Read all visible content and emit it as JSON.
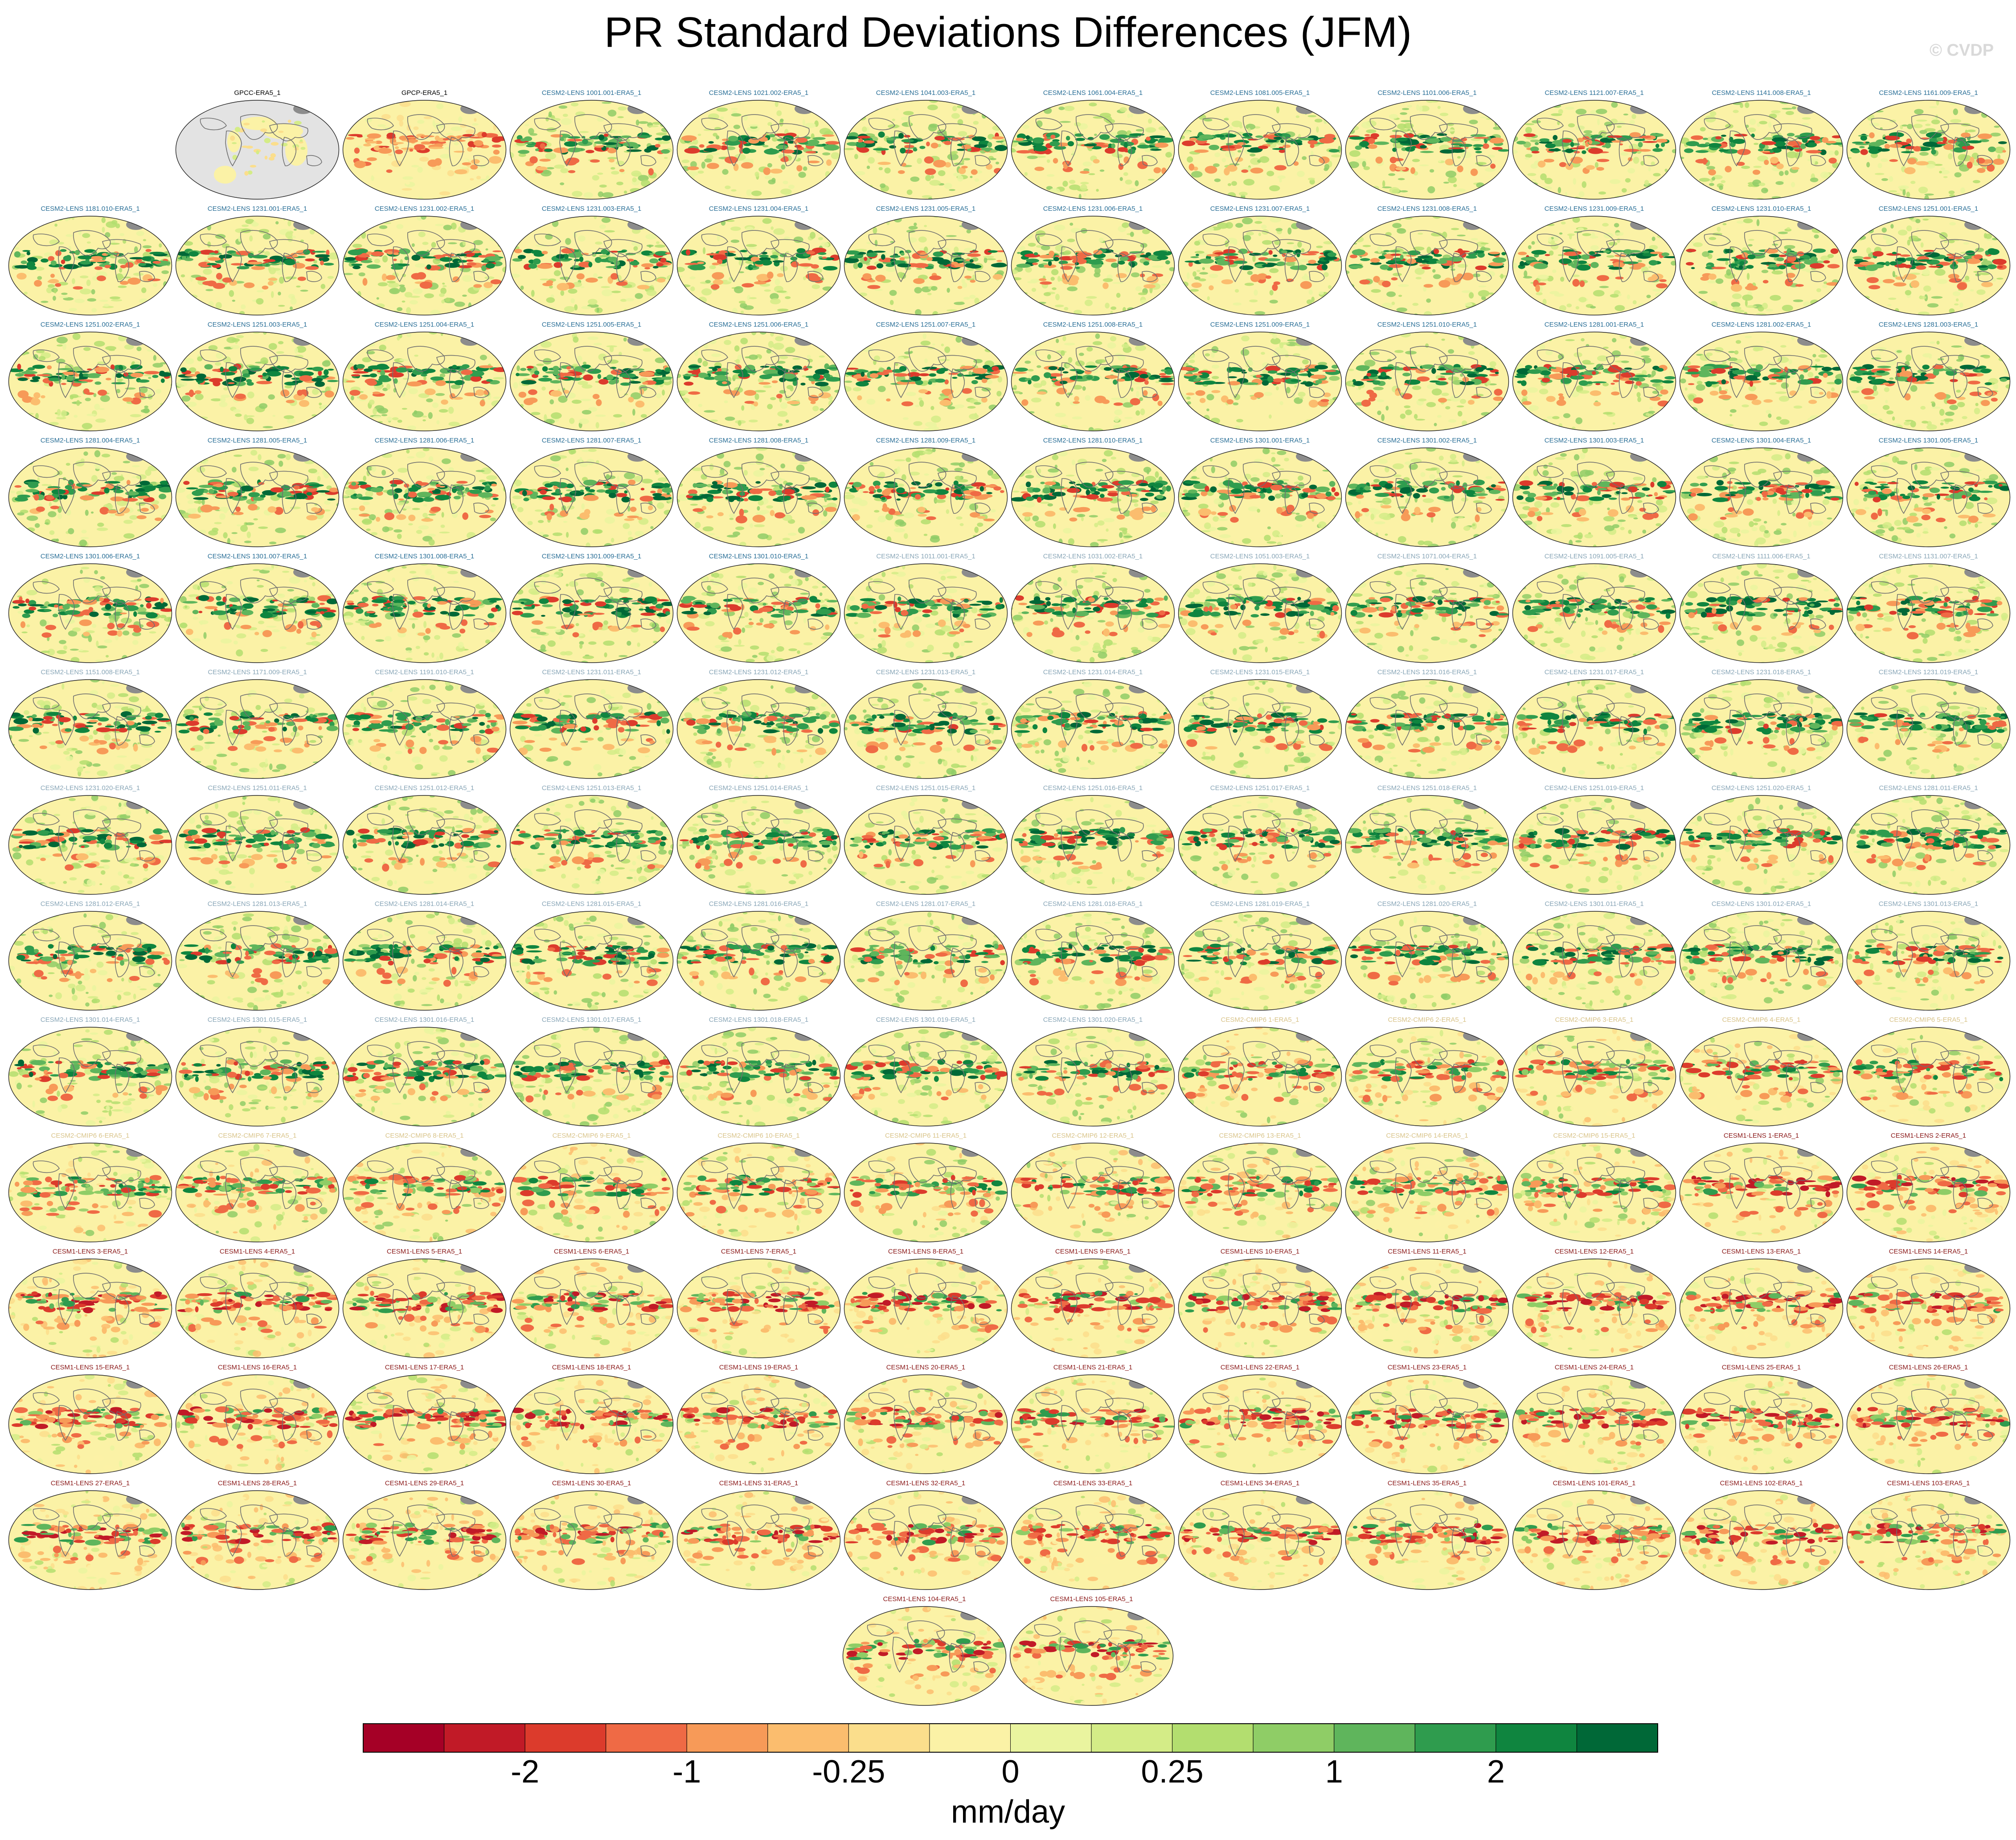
{
  "title": "PR Standard Deviations Differences (JFM)",
  "watermark": "© CVDP",
  "colorbar": {
    "units": "mm/day",
    "colors": [
      "#a50026",
      "#c11a27",
      "#dc3b2c",
      "#ef6a45",
      "#f79a58",
      "#fbbd6e",
      "#fbde8c",
      "#fbf2a6",
      "#eaf49f",
      "#d4ec87",
      "#b3de6f",
      "#8fcd66",
      "#5fb55c",
      "#2f9c4e",
      "#0f853f",
      "#006837"
    ],
    "tick_labels": [
      "-2",
      "-1",
      "-0.25",
      "0",
      "0.25",
      "1",
      "2"
    ]
  },
  "group_colors": {
    "obs": "#000000",
    "cesm2_lens": "#2a6f97",
    "cesm2_lens_light": "#8aa7b8",
    "cesm2_cmip6": "#d9c48a",
    "cesm1_lens": "#8b1a1a"
  },
  "chart_data": {
    "type": "map-panels",
    "title": "PR Standard Deviations Differences (JFM)",
    "colorbar_label": "mm/day",
    "colorbar_levels": [
      "-2",
      "-1",
      "-0.25",
      "0",
      "0.25",
      "1",
      "2"
    ],
    "panels": [
      {
        "name": "GPCC-ERA5_1",
        "group": "obs",
        "pattern": "gpcc"
      },
      {
        "name": "GPCP-ERA5_1",
        "group": "obs",
        "pattern": "gpcp"
      },
      {
        "name": "CESM2-LENS 1001.001-ERA5_1",
        "group": "cesm2_lens",
        "pattern": "wet"
      },
      {
        "name": "CESM2-LENS 1021.002-ERA5_1",
        "group": "cesm2_lens",
        "pattern": "wet"
      },
      {
        "name": "CESM2-LENS 1041.003-ERA5_1",
        "group": "cesm2_lens",
        "pattern": "wet"
      },
      {
        "name": "CESM2-LENS 1061.004-ERA5_1",
        "group": "cesm2_lens",
        "pattern": "wet"
      },
      {
        "name": "CESM2-LENS 1081.005-ERA5_1",
        "group": "cesm2_lens",
        "pattern": "wet"
      },
      {
        "name": "CESM2-LENS 1101.006-ERA5_1",
        "group": "cesm2_lens",
        "pattern": "wet"
      },
      {
        "name": "CESM2-LENS 1121.007-ERA5_1",
        "group": "cesm2_lens",
        "pattern": "wet"
      },
      {
        "name": "CESM2-LENS 1141.008-ERA5_1",
        "group": "cesm2_lens",
        "pattern": "wet"
      },
      {
        "name": "CESM2-LENS 1161.009-ERA5_1",
        "group": "cesm2_lens",
        "pattern": "wet"
      },
      {
        "name": "CESM2-LENS 1181.010-ERA5_1",
        "group": "cesm2_lens",
        "pattern": "wet"
      },
      {
        "name": "CESM2-LENS 1231.001-ERA5_1",
        "group": "cesm2_lens",
        "pattern": "wet"
      },
      {
        "name": "CESM2-LENS 1231.002-ERA5_1",
        "group": "cesm2_lens",
        "pattern": "wet"
      },
      {
        "name": "CESM2-LENS 1231.003-ERA5_1",
        "group": "cesm2_lens",
        "pattern": "wet"
      },
      {
        "name": "CESM2-LENS 1231.004-ERA5_1",
        "group": "cesm2_lens",
        "pattern": "wet"
      },
      {
        "name": "CESM2-LENS 1231.005-ERA5_1",
        "group": "cesm2_lens",
        "pattern": "wet"
      },
      {
        "name": "CESM2-LENS 1231.006-ERA5_1",
        "group": "cesm2_lens",
        "pattern": "wet"
      },
      {
        "name": "CESM2-LENS 1231.007-ERA5_1",
        "group": "cesm2_lens",
        "pattern": "wet"
      },
      {
        "name": "CESM2-LENS 1231.008-ERA5_1",
        "group": "cesm2_lens",
        "pattern": "wet"
      },
      {
        "name": "CESM2-LENS 1231.009-ERA5_1",
        "group": "cesm2_lens",
        "pattern": "wet"
      },
      {
        "name": "CESM2-LENS 1231.010-ERA5_1",
        "group": "cesm2_lens",
        "pattern": "wet"
      },
      {
        "name": "CESM2-LENS 1251.001-ERA5_1",
        "group": "cesm2_lens",
        "pattern": "wet"
      },
      {
        "name": "CESM2-LENS 1251.002-ERA5_1",
        "group": "cesm2_lens",
        "pattern": "wet"
      },
      {
        "name": "CESM2-LENS 1251.003-ERA5_1",
        "group": "cesm2_lens",
        "pattern": "wet"
      },
      {
        "name": "CESM2-LENS 1251.004-ERA5_1",
        "group": "cesm2_lens",
        "pattern": "wet"
      },
      {
        "name": "CESM2-LENS 1251.005-ERA5_1",
        "group": "cesm2_lens",
        "pattern": "wet"
      },
      {
        "name": "CESM2-LENS 1251.006-ERA5_1",
        "group": "cesm2_lens",
        "pattern": "wet"
      },
      {
        "name": "CESM2-LENS 1251.007-ERA5_1",
        "group": "cesm2_lens",
        "pattern": "wet"
      },
      {
        "name": "CESM2-LENS 1251.008-ERA5_1",
        "group": "cesm2_lens",
        "pattern": "wet"
      },
      {
        "name": "CESM2-LENS 1251.009-ERA5_1",
        "group": "cesm2_lens",
        "pattern": "wet"
      },
      {
        "name": "CESM2-LENS 1251.010-ERA5_1",
        "group": "cesm2_lens",
        "pattern": "wet"
      },
      {
        "name": "CESM2-LENS 1281.001-ERA5_1",
        "group": "cesm2_lens",
        "pattern": "wet"
      },
      {
        "name": "CESM2-LENS 1281.002-ERA5_1",
        "group": "cesm2_lens",
        "pattern": "wet"
      },
      {
        "name": "CESM2-LENS 1281.003-ERA5_1",
        "group": "cesm2_lens",
        "pattern": "wet"
      },
      {
        "name": "CESM2-LENS 1281.004-ERA5_1",
        "group": "cesm2_lens",
        "pattern": "wet"
      },
      {
        "name": "CESM2-LENS 1281.005-ERA5_1",
        "group": "cesm2_lens",
        "pattern": "wet"
      },
      {
        "name": "CESM2-LENS 1281.006-ERA5_1",
        "group": "cesm2_lens",
        "pattern": "wet"
      },
      {
        "name": "CESM2-LENS 1281.007-ERA5_1",
        "group": "cesm2_lens",
        "pattern": "wet"
      },
      {
        "name": "CESM2-LENS 1281.008-ERA5_1",
        "group": "cesm2_lens",
        "pattern": "wet"
      },
      {
        "name": "CESM2-LENS 1281.009-ERA5_1",
        "group": "cesm2_lens",
        "pattern": "wet"
      },
      {
        "name": "CESM2-LENS 1281.010-ERA5_1",
        "group": "cesm2_lens",
        "pattern": "wet"
      },
      {
        "name": "CESM2-LENS 1301.001-ERA5_1",
        "group": "cesm2_lens",
        "pattern": "wet"
      },
      {
        "name": "CESM2-LENS 1301.002-ERA5_1",
        "group": "cesm2_lens",
        "pattern": "wet"
      },
      {
        "name": "CESM2-LENS 1301.003-ERA5_1",
        "group": "cesm2_lens",
        "pattern": "wet"
      },
      {
        "name": "CESM2-LENS 1301.004-ERA5_1",
        "group": "cesm2_lens",
        "pattern": "wet"
      },
      {
        "name": "CESM2-LENS 1301.005-ERA5_1",
        "group": "cesm2_lens",
        "pattern": "wet"
      },
      {
        "name": "CESM2-LENS 1301.006-ERA5_1",
        "group": "cesm2_lens",
        "pattern": "wet"
      },
      {
        "name": "CESM2-LENS 1301.007-ERA5_1",
        "group": "cesm2_lens",
        "pattern": "wet"
      },
      {
        "name": "CESM2-LENS 1301.008-ERA5_1",
        "group": "cesm2_lens",
        "pattern": "wet"
      },
      {
        "name": "CESM2-LENS 1301.009-ERA5_1",
        "group": "cesm2_lens",
        "pattern": "wet"
      },
      {
        "name": "CESM2-LENS 1301.010-ERA5_1",
        "group": "cesm2_lens",
        "pattern": "wet"
      },
      {
        "name": "CESM2-LENS 1011.001-ERA5_1",
        "group": "cesm2_lens_light",
        "pattern": "wet"
      },
      {
        "name": "CESM2-LENS 1031.002-ERA5_1",
        "group": "cesm2_lens_light",
        "pattern": "wet"
      },
      {
        "name": "CESM2-LENS 1051.003-ERA5_1",
        "group": "cesm2_lens_light",
        "pattern": "wet"
      },
      {
        "name": "CESM2-LENS 1071.004-ERA5_1",
        "group": "cesm2_lens_light",
        "pattern": "wet"
      },
      {
        "name": "CESM2-LENS 1091.005-ERA5_1",
        "group": "cesm2_lens_light",
        "pattern": "wet"
      },
      {
        "name": "CESM2-LENS 1111.006-ERA5_1",
        "group": "cesm2_lens_light",
        "pattern": "wet"
      },
      {
        "name": "CESM2-LENS 1131.007-ERA5_1",
        "group": "cesm2_lens_light",
        "pattern": "wet"
      },
      {
        "name": "CESM2-LENS 1151.008-ERA5_1",
        "group": "cesm2_lens_light",
        "pattern": "wet"
      },
      {
        "name": "CESM2-LENS 1171.009-ERA5_1",
        "group": "cesm2_lens_light",
        "pattern": "wet"
      },
      {
        "name": "CESM2-LENS 1191.010-ERA5_1",
        "group": "cesm2_lens_light",
        "pattern": "wet"
      },
      {
        "name": "CESM2-LENS 1231.011-ERA5_1",
        "group": "cesm2_lens_light",
        "pattern": "wet"
      },
      {
        "name": "CESM2-LENS 1231.012-ERA5_1",
        "group": "cesm2_lens_light",
        "pattern": "wet"
      },
      {
        "name": "CESM2-LENS 1231.013-ERA5_1",
        "group": "cesm2_lens_light",
        "pattern": "wet"
      },
      {
        "name": "CESM2-LENS 1231.014-ERA5_1",
        "group": "cesm2_lens_light",
        "pattern": "wet"
      },
      {
        "name": "CESM2-LENS 1231.015-ERA5_1",
        "group": "cesm2_lens_light",
        "pattern": "wet"
      },
      {
        "name": "CESM2-LENS 1231.016-ERA5_1",
        "group": "cesm2_lens_light",
        "pattern": "wet"
      },
      {
        "name": "CESM2-LENS 1231.017-ERA5_1",
        "group": "cesm2_lens_light",
        "pattern": "wet"
      },
      {
        "name": "CESM2-LENS 1231.018-ERA5_1",
        "group": "cesm2_lens_light",
        "pattern": "wet"
      },
      {
        "name": "CESM2-LENS 1231.019-ERA5_1",
        "group": "cesm2_lens_light",
        "pattern": "wet"
      },
      {
        "name": "CESM2-LENS 1231.020-ERA5_1",
        "group": "cesm2_lens_light",
        "pattern": "wet"
      },
      {
        "name": "CESM2-LENS 1251.011-ERA5_1",
        "group": "cesm2_lens_light",
        "pattern": "wet"
      },
      {
        "name": "CESM2-LENS 1251.012-ERA5_1",
        "group": "cesm2_lens_light",
        "pattern": "wet"
      },
      {
        "name": "CESM2-LENS 1251.013-ERA5_1",
        "group": "cesm2_lens_light",
        "pattern": "wet"
      },
      {
        "name": "CESM2-LENS 1251.014-ERA5_1",
        "group": "cesm2_lens_light",
        "pattern": "wet"
      },
      {
        "name": "CESM2-LENS 1251.015-ERA5_1",
        "group": "cesm2_lens_light",
        "pattern": "wet"
      },
      {
        "name": "CESM2-LENS 1251.016-ERA5_1",
        "group": "cesm2_lens_light",
        "pattern": "wet"
      },
      {
        "name": "CESM2-LENS 1251.017-ERA5_1",
        "group": "cesm2_lens_light",
        "pattern": "wet"
      },
      {
        "name": "CESM2-LENS 1251.018-ERA5_1",
        "group": "cesm2_lens_light",
        "pattern": "wet"
      },
      {
        "name": "CESM2-LENS 1251.019-ERA5_1",
        "group": "cesm2_lens_light",
        "pattern": "wet"
      },
      {
        "name": "CESM2-LENS 1251.020-ERA5_1",
        "group": "cesm2_lens_light",
        "pattern": "wet"
      },
      {
        "name": "CESM2-LENS 1281.011-ERA5_1",
        "group": "cesm2_lens_light",
        "pattern": "wet"
      },
      {
        "name": "CESM2-LENS 1281.012-ERA5_1",
        "group": "cesm2_lens_light",
        "pattern": "wet"
      },
      {
        "name": "CESM2-LENS 1281.013-ERA5_1",
        "group": "cesm2_lens_light",
        "pattern": "wet"
      },
      {
        "name": "CESM2-LENS 1281.014-ERA5_1",
        "group": "cesm2_lens_light",
        "pattern": "wet"
      },
      {
        "name": "CESM2-LENS 1281.015-ERA5_1",
        "group": "cesm2_lens_light",
        "pattern": "wet"
      },
      {
        "name": "CESM2-LENS 1281.016-ERA5_1",
        "group": "cesm2_lens_light",
        "pattern": "wet"
      },
      {
        "name": "CESM2-LENS 1281.017-ERA5_1",
        "group": "cesm2_lens_light",
        "pattern": "wet"
      },
      {
        "name": "CESM2-LENS 1281.018-ERA5_1",
        "group": "cesm2_lens_light",
        "pattern": "wet"
      },
      {
        "name": "CESM2-LENS 1281.019-ERA5_1",
        "group": "cesm2_lens_light",
        "pattern": "wet"
      },
      {
        "name": "CESM2-LENS 1281.020-ERA5_1",
        "group": "cesm2_lens_light",
        "pattern": "wet"
      },
      {
        "name": "CESM2-LENS 1301.011-ERA5_1",
        "group": "cesm2_lens_light",
        "pattern": "wet"
      },
      {
        "name": "CESM2-LENS 1301.012-ERA5_1",
        "group": "cesm2_lens_light",
        "pattern": "wet"
      },
      {
        "name": "CESM2-LENS 1301.013-ERA5_1",
        "group": "cesm2_lens_light",
        "pattern": "wet"
      },
      {
        "name": "CESM2-LENS 1301.014-ERA5_1",
        "group": "cesm2_lens_light",
        "pattern": "wet"
      },
      {
        "name": "CESM2-LENS 1301.015-ERA5_1",
        "group": "cesm2_lens_light",
        "pattern": "wet"
      },
      {
        "name": "CESM2-LENS 1301.016-ERA5_1",
        "group": "cesm2_lens_light",
        "pattern": "wet"
      },
      {
        "name": "CESM2-LENS 1301.017-ERA5_1",
        "group": "cesm2_lens_light",
        "pattern": "wet"
      },
      {
        "name": "CESM2-LENS 1301.018-ERA5_1",
        "group": "cesm2_lens_light",
        "pattern": "wet"
      },
      {
        "name": "CESM2-LENS 1301.019-ERA5_1",
        "group": "cesm2_lens_light",
        "pattern": "wet"
      },
      {
        "name": "CESM2-LENS 1301.020-ERA5_1",
        "group": "cesm2_lens_light",
        "pattern": "wet"
      },
      {
        "name": "CESM2-CMIP6 1-ERA5_1",
        "group": "cesm2_cmip6",
        "pattern": "mixed"
      },
      {
        "name": "CESM2-CMIP6 2-ERA5_1",
        "group": "cesm2_cmip6",
        "pattern": "mixed"
      },
      {
        "name": "CESM2-CMIP6 3-ERA5_1",
        "group": "cesm2_cmip6",
        "pattern": "mixed"
      },
      {
        "name": "CESM2-CMIP6 4-ERA5_1",
        "group": "cesm2_cmip6",
        "pattern": "mixed"
      },
      {
        "name": "CESM2-CMIP6 5-ERA5_1",
        "group": "cesm2_cmip6",
        "pattern": "mixed"
      },
      {
        "name": "CESM2-CMIP6 6-ERA5_1",
        "group": "cesm2_cmip6",
        "pattern": "mixed"
      },
      {
        "name": "CESM2-CMIP6 7-ERA5_1",
        "group": "cesm2_cmip6",
        "pattern": "mixed"
      },
      {
        "name": "CESM2-CMIP6 8-ERA5_1",
        "group": "cesm2_cmip6",
        "pattern": "mixed"
      },
      {
        "name": "CESM2-CMIP6 9-ERA5_1",
        "group": "cesm2_cmip6",
        "pattern": "mixed"
      },
      {
        "name": "CESM2-CMIP6 10-ERA5_1",
        "group": "cesm2_cmip6",
        "pattern": "mixed"
      },
      {
        "name": "CESM2-CMIP6 11-ERA5_1",
        "group": "cesm2_cmip6",
        "pattern": "mixed"
      },
      {
        "name": "CESM2-CMIP6 12-ERA5_1",
        "group": "cesm2_cmip6",
        "pattern": "mixed"
      },
      {
        "name": "CESM2-CMIP6 13-ERA5_1",
        "group": "cesm2_cmip6",
        "pattern": "mixed"
      },
      {
        "name": "CESM2-CMIP6 14-ERA5_1",
        "group": "cesm2_cmip6",
        "pattern": "mixed"
      },
      {
        "name": "CESM2-CMIP6 15-ERA5_1",
        "group": "cesm2_cmip6",
        "pattern": "mixed"
      },
      {
        "name": "CESM1-LENS 1-ERA5_1",
        "group": "cesm1_lens",
        "pattern": "dry"
      },
      {
        "name": "CESM1-LENS 2-ERA5_1",
        "group": "cesm1_lens",
        "pattern": "dry"
      },
      {
        "name": "CESM1-LENS 3-ERA5_1",
        "group": "cesm1_lens",
        "pattern": "dry"
      },
      {
        "name": "CESM1-LENS 4-ERA5_1",
        "group": "cesm1_lens",
        "pattern": "dry"
      },
      {
        "name": "CESM1-LENS 5-ERA5_1",
        "group": "cesm1_lens",
        "pattern": "dry"
      },
      {
        "name": "CESM1-LENS 6-ERA5_1",
        "group": "cesm1_lens",
        "pattern": "dry"
      },
      {
        "name": "CESM1-LENS 7-ERA5_1",
        "group": "cesm1_lens",
        "pattern": "dry"
      },
      {
        "name": "CESM1-LENS 8-ERA5_1",
        "group": "cesm1_lens",
        "pattern": "dry"
      },
      {
        "name": "CESM1-LENS 9-ERA5_1",
        "group": "cesm1_lens",
        "pattern": "dry"
      },
      {
        "name": "CESM1-LENS 10-ERA5_1",
        "group": "cesm1_lens",
        "pattern": "dry"
      },
      {
        "name": "CESM1-LENS 11-ERA5_1",
        "group": "cesm1_lens",
        "pattern": "dry"
      },
      {
        "name": "CESM1-LENS 12-ERA5_1",
        "group": "cesm1_lens",
        "pattern": "dry"
      },
      {
        "name": "CESM1-LENS 13-ERA5_1",
        "group": "cesm1_lens",
        "pattern": "dry"
      },
      {
        "name": "CESM1-LENS 14-ERA5_1",
        "group": "cesm1_lens",
        "pattern": "dry"
      },
      {
        "name": "CESM1-LENS 15-ERA5_1",
        "group": "cesm1_lens",
        "pattern": "dry"
      },
      {
        "name": "CESM1-LENS 16-ERA5_1",
        "group": "cesm1_lens",
        "pattern": "dry"
      },
      {
        "name": "CESM1-LENS 17-ERA5_1",
        "group": "cesm1_lens",
        "pattern": "dry"
      },
      {
        "name": "CESM1-LENS 18-ERA5_1",
        "group": "cesm1_lens",
        "pattern": "dry"
      },
      {
        "name": "CESM1-LENS 19-ERA5_1",
        "group": "cesm1_lens",
        "pattern": "dry"
      },
      {
        "name": "CESM1-LENS 20-ERA5_1",
        "group": "cesm1_lens",
        "pattern": "dry"
      },
      {
        "name": "CESM1-LENS 21-ERA5_1",
        "group": "cesm1_lens",
        "pattern": "dry"
      },
      {
        "name": "CESM1-LENS 22-ERA5_1",
        "group": "cesm1_lens",
        "pattern": "dry"
      },
      {
        "name": "CESM1-LENS 23-ERA5_1",
        "group": "cesm1_lens",
        "pattern": "dry"
      },
      {
        "name": "CESM1-LENS 24-ERA5_1",
        "group": "cesm1_lens",
        "pattern": "dry"
      },
      {
        "name": "CESM1-LENS 25-ERA5_1",
        "group": "cesm1_lens",
        "pattern": "dry"
      },
      {
        "name": "CESM1-LENS 26-ERA5_1",
        "group": "cesm1_lens",
        "pattern": "dry"
      },
      {
        "name": "CESM1-LENS 27-ERA5_1",
        "group": "cesm1_lens",
        "pattern": "dry"
      },
      {
        "name": "CESM1-LENS 28-ERA5_1",
        "group": "cesm1_lens",
        "pattern": "dry"
      },
      {
        "name": "CESM1-LENS 29-ERA5_1",
        "group": "cesm1_lens",
        "pattern": "dry"
      },
      {
        "name": "CESM1-LENS 30-ERA5_1",
        "group": "cesm1_lens",
        "pattern": "dry"
      },
      {
        "name": "CESM1-LENS 31-ERA5_1",
        "group": "cesm1_lens",
        "pattern": "dry"
      },
      {
        "name": "CESM1-LENS 32-ERA5_1",
        "group": "cesm1_lens",
        "pattern": "dry"
      },
      {
        "name": "CESM1-LENS 33-ERA5_1",
        "group": "cesm1_lens",
        "pattern": "dry"
      },
      {
        "name": "CESM1-LENS 34-ERA5_1",
        "group": "cesm1_lens",
        "pattern": "dry"
      },
      {
        "name": "CESM1-LENS 35-ERA5_1",
        "group": "cesm1_lens",
        "pattern": "dry"
      },
      {
        "name": "CESM1-LENS 101-ERA5_1",
        "group": "cesm1_lens",
        "pattern": "dry"
      },
      {
        "name": "CESM1-LENS 102-ERA5_1",
        "group": "cesm1_lens",
        "pattern": "dry"
      },
      {
        "name": "CESM1-LENS 103-ERA5_1",
        "group": "cesm1_lens",
        "pattern": "dry"
      },
      {
        "name": "CESM1-LENS 104-ERA5_1",
        "group": "cesm1_lens",
        "pattern": "dry"
      },
      {
        "name": "CESM1-LENS 105-ERA5_1",
        "group": "cesm1_lens",
        "pattern": "dry"
      }
    ]
  }
}
